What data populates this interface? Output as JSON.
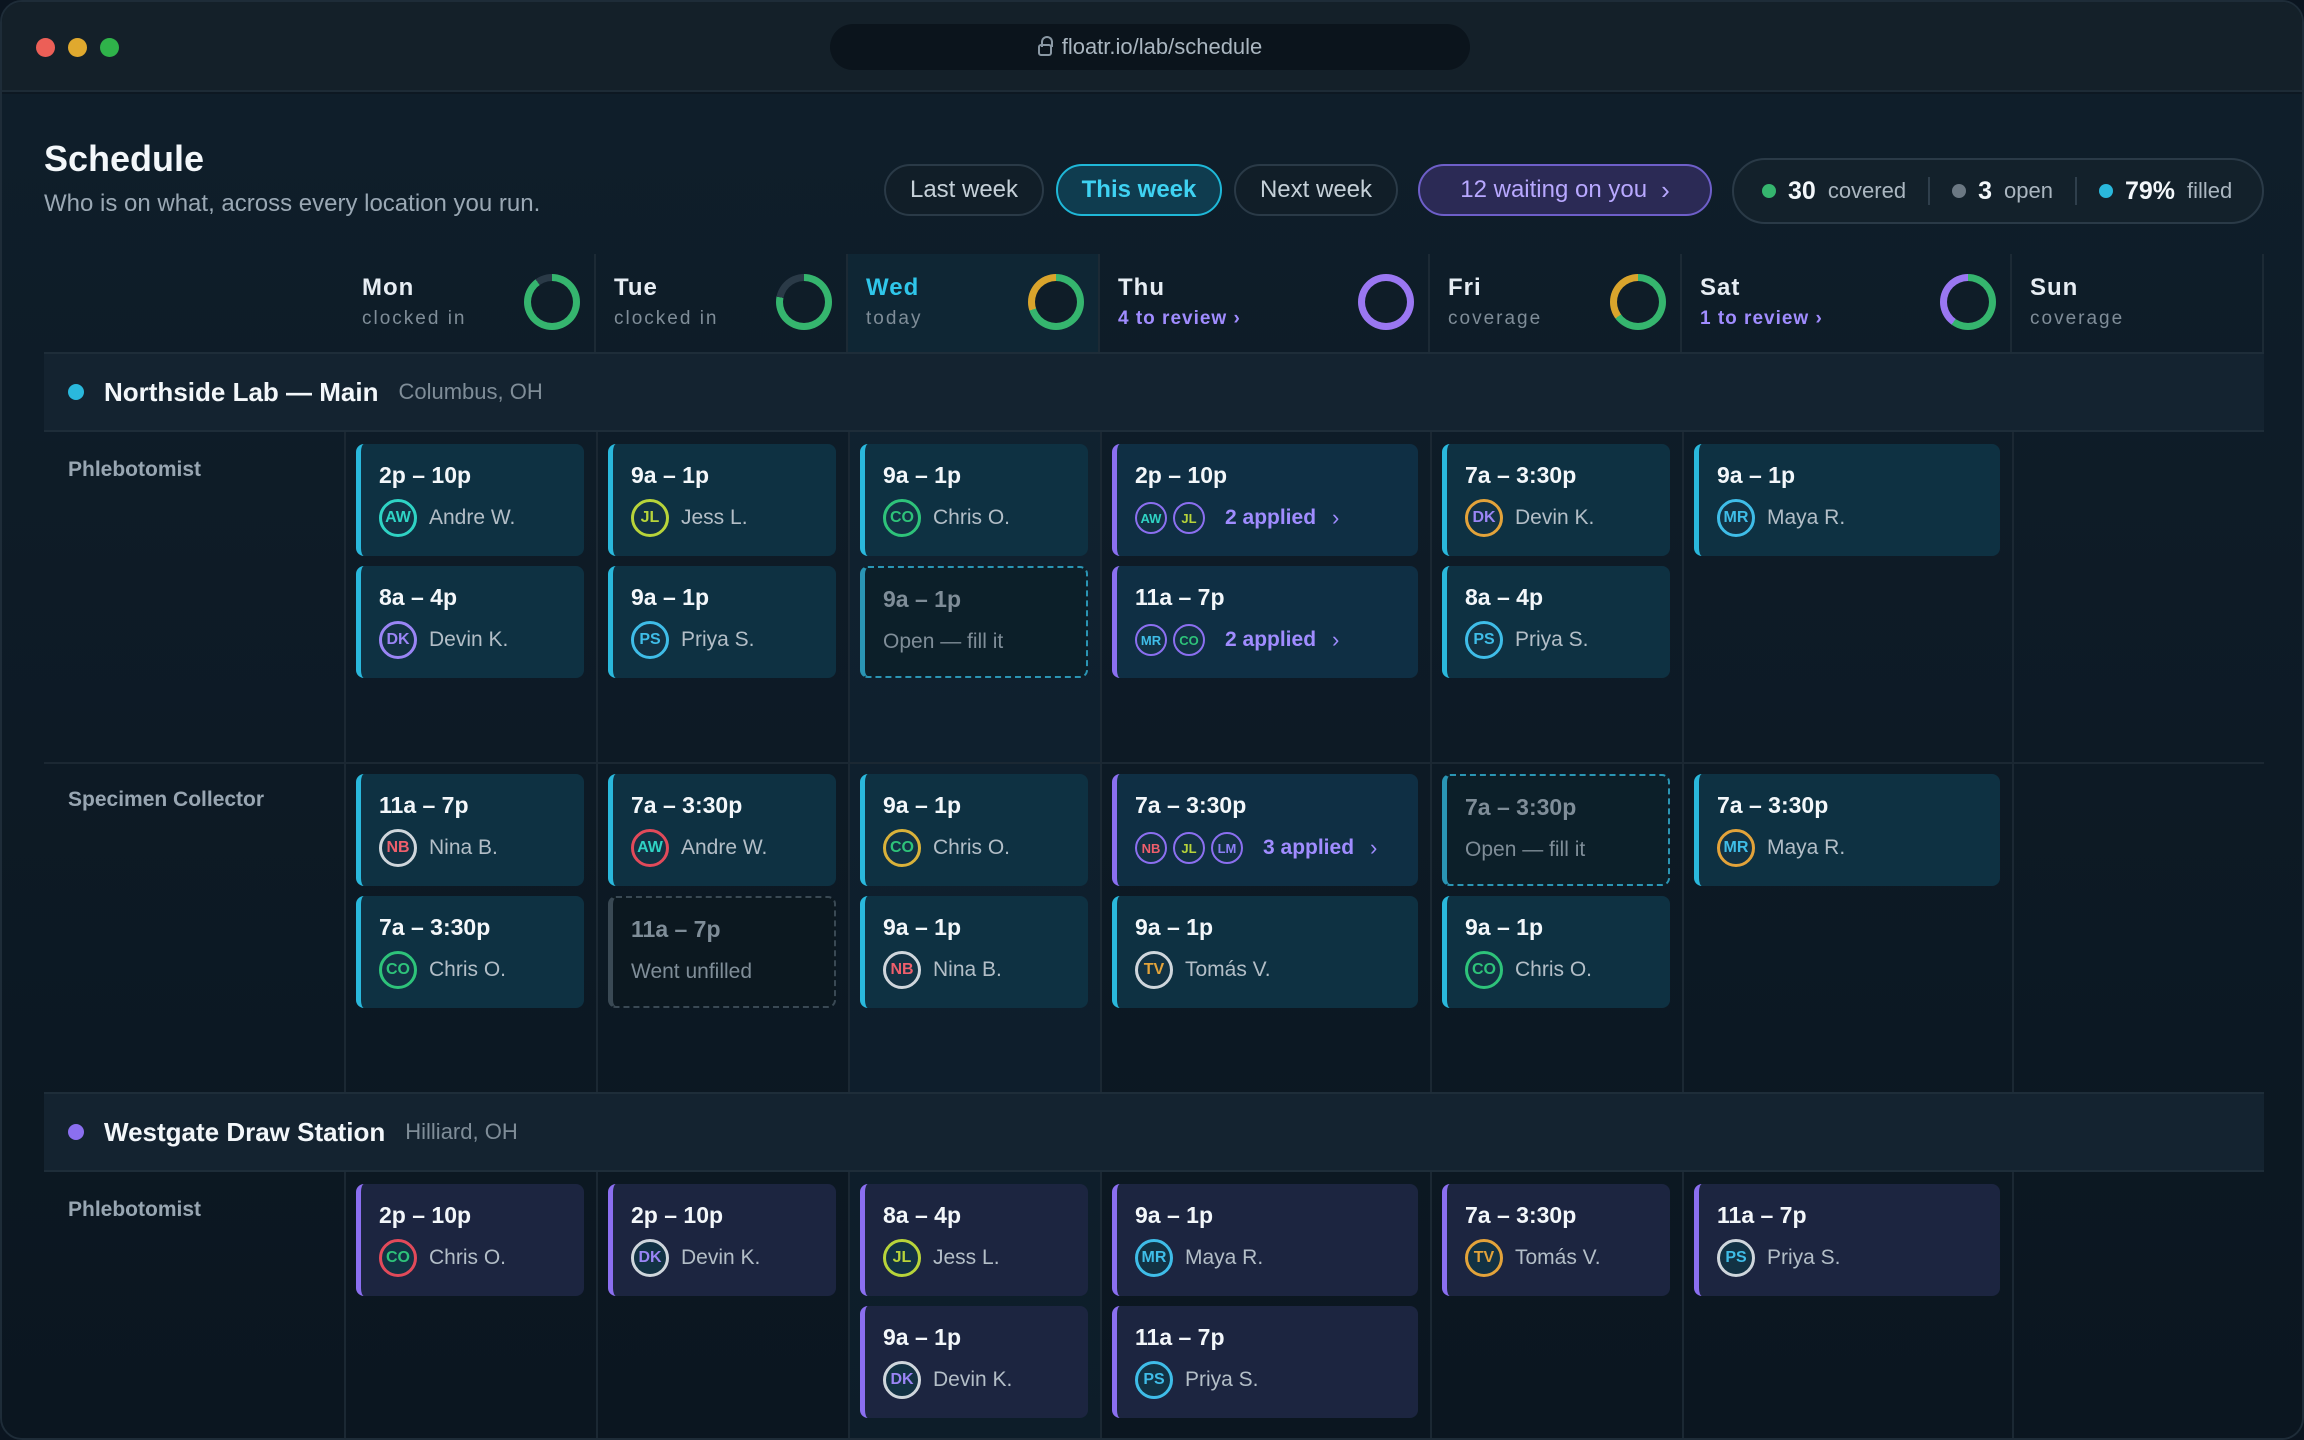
{
  "browser": {
    "url": "floatr.io/lab/schedule"
  },
  "header": {
    "title": "Schedule",
    "subtitle": "Who is on what, across every location you run.",
    "week_tabs": [
      "Last week",
      "This week",
      "Next week"
    ],
    "active_tab": "This week",
    "waiting_label": "12 waiting on you",
    "stats": {
      "covered_value": "30",
      "covered_label": "covered",
      "open_value": "3",
      "open_label": "open",
      "filled_value": "79%",
      "filled_label": "filled"
    }
  },
  "days": [
    {
      "name": "Mon",
      "sub": "clocked in",
      "progress": 0.9,
      "color": "#35b56e"
    },
    {
      "name": "Tue",
      "sub": "clocked in",
      "progress": 0.78,
      "color": "#35b56e"
    },
    {
      "name": "Wed",
      "sub": "today",
      "progress": 0.7,
      "color": "#35b56e",
      "accent": "#d9a42c"
    },
    {
      "name": "Thu",
      "sub": "4 to review",
      "review": true,
      "progress": 1.0,
      "color": "#9a77f2"
    },
    {
      "name": "Fri",
      "sub": "coverage",
      "progress": 0.65,
      "color": "#35b56e",
      "accent": "#d9a42c"
    },
    {
      "name": "Sat",
      "sub": "1 to review",
      "review": true,
      "progress": 0.6,
      "color": "#35b56e",
      "accent": "#9a77f2"
    },
    {
      "name": "Sun",
      "sub": "coverage"
    }
  ],
  "people": {
    "AW": {
      "name": "Andre W.",
      "color": "#2fd3c4"
    },
    "JL": {
      "name": "Jess L.",
      "color": "#b8d43a"
    },
    "DK": {
      "name": "Devin K.",
      "color": "#9a85f5"
    },
    "PS": {
      "name": "Priya S.",
      "color": "#3fbde8"
    },
    "CO": {
      "name": "Chris O.",
      "color": "#2ec37a"
    },
    "MR": {
      "name": "Maya R.",
      "color": "#3fbde8"
    },
    "NB": {
      "name": "Nina B.",
      "color": "#ef5f6c"
    },
    "TV": {
      "name": "Tomás V.",
      "color": "#e3a33a"
    },
    "LM": {
      "name": "LM",
      "color": "#8b7ff5"
    }
  },
  "locations": [
    {
      "name": "Northside Lab — Main",
      "city": "Columbus, OH",
      "dot": "#2ab8dc",
      "roles": [
        {
          "role": "Phlebotomist",
          "days": [
            [
              {
                "time": "2p – 10p",
                "who": "AW",
                "avc": "#2fd3c4"
              },
              {
                "time": "8a – 4p",
                "who": "DK",
                "avc": "#9a85f5"
              }
            ],
            [
              {
                "time": "9a – 1p",
                "who": "JL",
                "avc": "#b8d43a"
              },
              {
                "time": "9a – 1p",
                "who": "PS",
                "avc": "#3fbde8"
              }
            ],
            [
              {
                "time": "9a – 1p",
                "who": "CO",
                "avc": "#2ec37a"
              },
              {
                "time": "9a – 1p",
                "type": "open",
                "note": "Open — fill it"
              }
            ],
            [
              {
                "time": "2p – 10p",
                "type": "applied",
                "applicants": [
                  "AW",
                  "JL"
                ],
                "applied": "2 applied"
              },
              {
                "time": "11a – 7p",
                "type": "applied",
                "applicants": [
                  "MR",
                  "CO"
                ],
                "applied": "2 applied"
              }
            ],
            [
              {
                "time": "7a – 3:30p",
                "who": "DK",
                "avc": "#e3a33a"
              },
              {
                "time": "8a – 4p",
                "who": "PS",
                "avc": "#3fbde8"
              }
            ],
            [
              {
                "time": "9a – 1p",
                "who": "MR",
                "avc": "#3fbde8"
              }
            ],
            []
          ]
        },
        {
          "role": "Specimen Collector",
          "days": [
            [
              {
                "time": "11a – 7p",
                "who": "NB",
                "avc": "#cfd6dc"
              },
              {
                "time": "7a – 3:30p",
                "who": "CO",
                "avc": "#2ec37a"
              }
            ],
            [
              {
                "time": "7a – 3:30p",
                "who": "AW",
                "avc": "#e24a5a"
              },
              {
                "time": "11a – 7p",
                "type": "unfilled",
                "note": "Went unfilled"
              }
            ],
            [
              {
                "time": "9a – 1p",
                "who": "CO",
                "avc": "#d9b23a"
              },
              {
                "time": "9a – 1p",
                "who": "NB",
                "avc": "#cfd6dc"
              }
            ],
            [
              {
                "time": "7a – 3:30p",
                "type": "applied",
                "applicants": [
                  "NB",
                  "JL",
                  "LM"
                ],
                "applied": "3 applied"
              },
              {
                "time": "9a – 1p",
                "who": "TV",
                "avc": "#cfd6dc"
              }
            ],
            [
              {
                "time": "7a – 3:30p",
                "type": "open",
                "note": "Open — fill it"
              },
              {
                "time": "9a – 1p",
                "who": "CO",
                "avc": "#2ec37a"
              }
            ],
            [
              {
                "time": "7a – 3:30p",
                "who": "MR",
                "avc": "#e3a33a"
              }
            ],
            []
          ]
        }
      ]
    },
    {
      "name": "Westgate Draw Station",
      "city": "Hilliard, OH",
      "dot": "#8b6ff0",
      "roles": [
        {
          "role": "Phlebotomist",
          "days": [
            [
              {
                "time": "2p – 10p",
                "who": "CO",
                "avc": "#e24a5a",
                "purple": true
              }
            ],
            [
              {
                "time": "2p – 10p",
                "who": "DK",
                "avc": "#cfd6dc",
                "purple": true
              }
            ],
            [
              {
                "time": "8a – 4p",
                "who": "JL",
                "avc": "#b8d43a",
                "purple": true
              },
              {
                "time": "9a – 1p",
                "who": "DK",
                "avc": "#cfd6dc",
                "purple": true
              }
            ],
            [
              {
                "time": "9a – 1p",
                "who": "MR",
                "avc": "#3fbde8",
                "purple": true
              },
              {
                "time": "11a – 7p",
                "who": "PS",
                "avc": "#3fbde8",
                "purple": true
              }
            ],
            [
              {
                "time": "7a – 3:30p",
                "who": "TV",
                "avc": "#e3a33a",
                "purple": true
              }
            ],
            [
              {
                "time": "11a – 7p",
                "who": "PS",
                "avc": "#cfd6dc",
                "purple": true
              }
            ],
            []
          ]
        }
      ]
    }
  ]
}
